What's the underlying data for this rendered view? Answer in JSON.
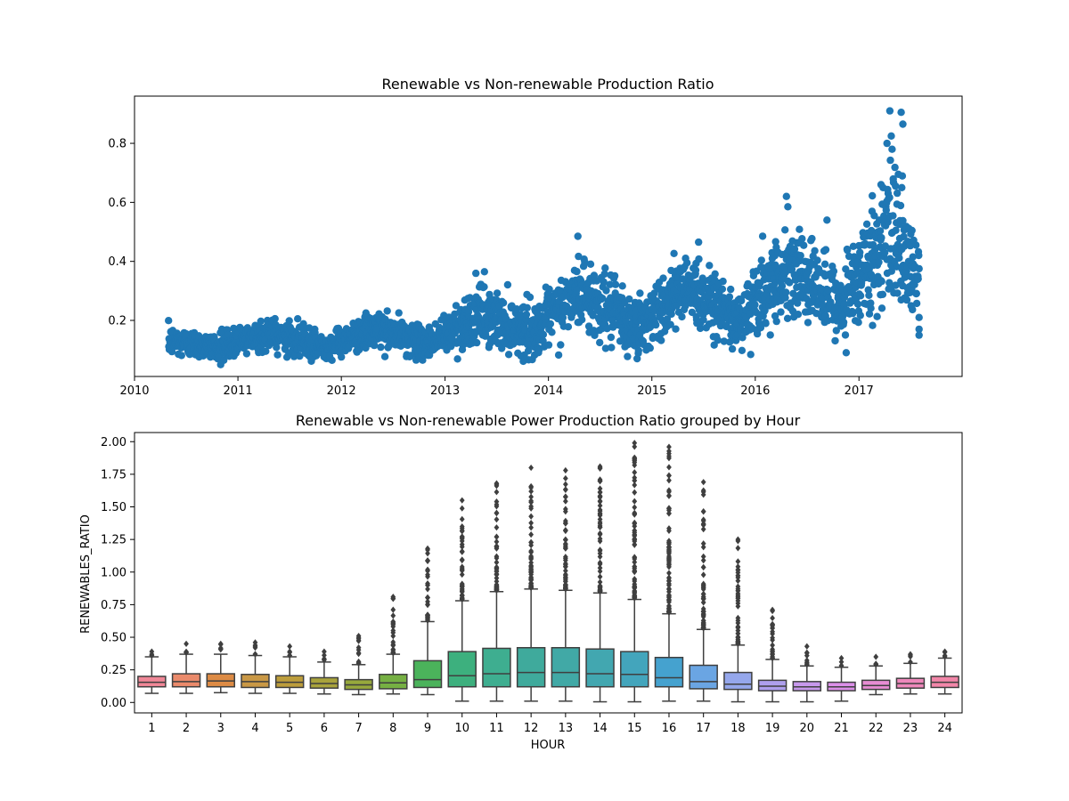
{
  "chart_data": [
    {
      "type": "scatter",
      "title": "Renewable vs Non-renewable Production Ratio",
      "xlabel": "",
      "ylabel": "",
      "x_ticks": [
        "2010",
        "2011",
        "2012",
        "2013",
        "2014",
        "2015",
        "2016",
        "2017"
      ],
      "y_ticks": [
        "0.2",
        "0.4",
        "0.6",
        "0.8"
      ],
      "xlim": [
        "2010-01-01",
        "2017-12-31"
      ],
      "ylim": [
        0.01,
        0.96
      ],
      "grid": false,
      "color": "#1f77b4",
      "trend": [
        {
          "date": "2010-05-01",
          "y": 0.13,
          "spread": 0.025
        },
        {
          "date": "2010-11-01",
          "y": 0.11,
          "spread": 0.02
        },
        {
          "date": "2011-05-01",
          "y": 0.16,
          "spread": 0.03
        },
        {
          "date": "2011-11-01",
          "y": 0.11,
          "spread": 0.02
        },
        {
          "date": "2012-05-01",
          "y": 0.17,
          "spread": 0.03
        },
        {
          "date": "2012-11-01",
          "y": 0.12,
          "spread": 0.025
        },
        {
          "date": "2013-05-01",
          "y": 0.22,
          "spread": 0.05
        },
        {
          "date": "2013-11-01",
          "y": 0.16,
          "spread": 0.04
        },
        {
          "date": "2014-05-01",
          "y": 0.3,
          "spread": 0.06
        },
        {
          "date": "2014-11-01",
          "y": 0.17,
          "spread": 0.05
        },
        {
          "date": "2015-05-01",
          "y": 0.32,
          "spread": 0.06
        },
        {
          "date": "2015-11-01",
          "y": 0.2,
          "spread": 0.05
        },
        {
          "date": "2016-05-01",
          "y": 0.38,
          "spread": 0.08
        },
        {
          "date": "2016-11-01",
          "y": 0.25,
          "spread": 0.06
        },
        {
          "date": "2017-05-01",
          "y": 0.5,
          "spread": 0.12
        },
        {
          "date": "2017-08-01",
          "y": 0.33,
          "spread": 0.08
        }
      ],
      "highlight_points": [
        {
          "x": "2017-04-20",
          "y": 0.91
        },
        {
          "x": "2017-05-30",
          "y": 0.905
        },
        {
          "x": "2017-06-05",
          "y": 0.865
        },
        {
          "x": "2017-04-10",
          "y": 0.8
        },
        {
          "x": "2017-04-25",
          "y": 0.825
        },
        {
          "x": "2017-04-28",
          "y": 0.78
        },
        {
          "x": "2016-04-20",
          "y": 0.62
        },
        {
          "x": "2016-04-25",
          "y": 0.585
        },
        {
          "x": "2016-09-10",
          "y": 0.54
        },
        {
          "x": "2014-04-15",
          "y": 0.485
        },
        {
          "x": "2013-05-20",
          "y": 0.365
        },
        {
          "x": "2015-06-15",
          "y": 0.465
        },
        {
          "x": "2017-03-20",
          "y": 0.66
        },
        {
          "x": "2017-05-10",
          "y": 0.655
        },
        {
          "x": "2017-06-01",
          "y": 0.65
        },
        {
          "x": "2010-11-01",
          "y": 0.05
        },
        {
          "x": "2017-08-01",
          "y": 0.15
        },
        {
          "x": "2017-08-01",
          "y": 0.17
        },
        {
          "x": "2017-08-01",
          "y": 0.21
        }
      ]
    },
    {
      "type": "box",
      "title": "Renewable vs Non-renewable Power Production Ratio grouped by Hour",
      "xlabel": "HOUR",
      "ylabel": "RENEWABLES_RATIO",
      "ylim": [
        -0.08,
        2.07
      ],
      "y_ticks": [
        "0.00",
        "0.25",
        "0.50",
        "0.75",
        "1.00",
        "1.25",
        "1.50",
        "1.75",
        "2.00"
      ],
      "categories": [
        "1",
        "2",
        "3",
        "4",
        "5",
        "6",
        "7",
        "8",
        "9",
        "10",
        "11",
        "12",
        "13",
        "14",
        "15",
        "16",
        "17",
        "18",
        "19",
        "20",
        "21",
        "22",
        "23",
        "24"
      ],
      "boxes": [
        {
          "hour": "1",
          "min": 0.07,
          "q1": 0.12,
          "median": 0.155,
          "q3": 0.2,
          "max": 0.35,
          "outlier_max": 0.39,
          "color": "#f08797"
        },
        {
          "hour": "2",
          "min": 0.07,
          "q1": 0.12,
          "median": 0.16,
          "q3": 0.22,
          "max": 0.37,
          "outlier_max": 0.45,
          "color": "#ea8a6b"
        },
        {
          "hour": "3",
          "min": 0.075,
          "q1": 0.12,
          "median": 0.165,
          "q3": 0.22,
          "max": 0.37,
          "outlier_max": 0.45,
          "color": "#dd8b45"
        },
        {
          "hour": "4",
          "min": 0.07,
          "q1": 0.115,
          "median": 0.16,
          "q3": 0.215,
          "max": 0.36,
          "outlier_max": 0.46,
          "color": "#c99845"
        },
        {
          "hour": "5",
          "min": 0.07,
          "q1": 0.115,
          "median": 0.155,
          "q3": 0.205,
          "max": 0.35,
          "outlier_max": 0.43,
          "color": "#bc9d3c"
        },
        {
          "hour": "6",
          "min": 0.065,
          "q1": 0.11,
          "median": 0.145,
          "q3": 0.19,
          "max": 0.31,
          "outlier_max": 0.39,
          "color": "#a9a33c"
        },
        {
          "hour": "7",
          "min": 0.06,
          "q1": 0.1,
          "median": 0.135,
          "q3": 0.175,
          "max": 0.29,
          "outlier_max": 0.51,
          "color": "#97a83c"
        },
        {
          "hour": "8",
          "min": 0.065,
          "q1": 0.105,
          "median": 0.15,
          "q3": 0.215,
          "max": 0.37,
          "outlier_max": 0.81,
          "color": "#76b043"
        },
        {
          "hour": "9",
          "min": 0.06,
          "q1": 0.115,
          "median": 0.175,
          "q3": 0.32,
          "max": 0.62,
          "outlier_max": 1.18,
          "color": "#4bb35b"
        },
        {
          "hour": "10",
          "min": 0.01,
          "q1": 0.12,
          "median": 0.205,
          "q3": 0.39,
          "max": 0.78,
          "outlier_max": 1.55,
          "color": "#3db07e"
        },
        {
          "hour": "11",
          "min": 0.01,
          "q1": 0.12,
          "median": 0.22,
          "q3": 0.415,
          "max": 0.85,
          "outlier_max": 1.68,
          "color": "#3eae90"
        },
        {
          "hour": "12",
          "min": 0.01,
          "q1": 0.12,
          "median": 0.23,
          "q3": 0.42,
          "max": 0.87,
          "outlier_max": 1.8,
          "color": "#3faa9c"
        },
        {
          "hour": "13",
          "min": 0.01,
          "q1": 0.12,
          "median": 0.23,
          "q3": 0.42,
          "max": 0.86,
          "outlier_max": 1.78,
          "color": "#41a9a6"
        },
        {
          "hour": "14",
          "min": 0.005,
          "q1": 0.12,
          "median": 0.22,
          "q3": 0.41,
          "max": 0.84,
          "outlier_max": 1.81,
          "color": "#42a7b0"
        },
        {
          "hour": "15",
          "min": 0.005,
          "q1": 0.12,
          "median": 0.215,
          "q3": 0.39,
          "max": 0.79,
          "outlier_max": 1.99,
          "color": "#43a5bc"
        },
        {
          "hour": "16",
          "min": 0.01,
          "q1": 0.12,
          "median": 0.19,
          "q3": 0.345,
          "max": 0.68,
          "outlier_max": 1.96,
          "color": "#45a2cf"
        },
        {
          "hour": "17",
          "min": 0.01,
          "q1": 0.105,
          "median": 0.16,
          "q3": 0.285,
          "max": 0.56,
          "outlier_max": 1.69,
          "color": "#6aa5e3"
        },
        {
          "hour": "18",
          "min": 0.005,
          "q1": 0.1,
          "median": 0.14,
          "q3": 0.23,
          "max": 0.44,
          "outlier_max": 1.25,
          "color": "#95a7ec"
        },
        {
          "hour": "19",
          "min": 0.005,
          "q1": 0.09,
          "median": 0.125,
          "q3": 0.17,
          "max": 0.33,
          "outlier_max": 0.71,
          "color": "#ae9fed"
        },
        {
          "hour": "20",
          "min": 0.005,
          "q1": 0.09,
          "median": 0.12,
          "q3": 0.16,
          "max": 0.28,
          "outlier_max": 0.43,
          "color": "#c798ec"
        },
        {
          "hour": "21",
          "min": 0.01,
          "q1": 0.09,
          "median": 0.12,
          "q3": 0.155,
          "max": 0.27,
          "outlier_max": 0.34,
          "color": "#db8fe8"
        },
        {
          "hour": "22",
          "min": 0.06,
          "q1": 0.1,
          "median": 0.13,
          "q3": 0.17,
          "max": 0.28,
          "outlier_max": 0.35,
          "color": "#e68cd2"
        },
        {
          "hour": "23",
          "min": 0.065,
          "q1": 0.11,
          "median": 0.145,
          "q3": 0.185,
          "max": 0.3,
          "outlier_max": 0.37,
          "color": "#ee88bb"
        },
        {
          "hour": "24",
          "min": 0.065,
          "q1": 0.115,
          "median": 0.155,
          "q3": 0.2,
          "max": 0.34,
          "outlier_max": 0.39,
          "color": "#f286a8"
        }
      ]
    }
  ]
}
